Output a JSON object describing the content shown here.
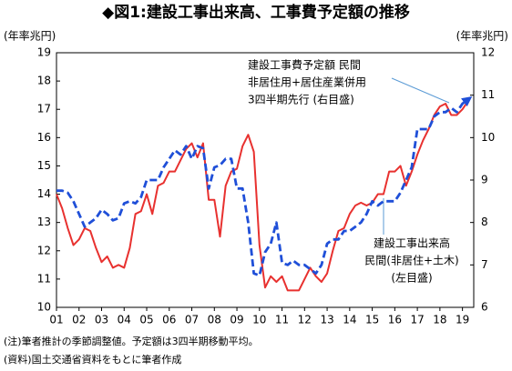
{
  "chart_data": {
    "type": "line",
    "title": "◆図1:建設工事出来高、工事費予定額の推移",
    "y_label": "(年率兆円)",
    "y2_label": "(年率兆円)",
    "x": [
      2001,
      2001.25,
      2001.5,
      2001.75,
      2002,
      2002.25,
      2002.5,
      2002.75,
      2003,
      2003.25,
      2003.5,
      2003.75,
      2004,
      2004.25,
      2004.5,
      2004.75,
      2005,
      2005.25,
      2005.5,
      2005.75,
      2006,
      2006.25,
      2006.5,
      2006.75,
      2007,
      2007.25,
      2007.5,
      2007.75,
      2008,
      2008.25,
      2008.5,
      2008.75,
      2009,
      2009.25,
      2009.5,
      2009.75,
      2010,
      2010.25,
      2010.5,
      2010.75,
      2011,
      2011.25,
      2011.5,
      2011.75,
      2012,
      2012.25,
      2012.5,
      2012.75,
      2013,
      2013.25,
      2013.5,
      2013.75,
      2014,
      2014.25,
      2014.5,
      2014.75,
      2015,
      2015.25,
      2015.5,
      2015.75,
      2016,
      2016.25,
      2016.5,
      2016.75,
      2017,
      2017.25,
      2017.5,
      2017.75,
      2018,
      2018.25,
      2018.5,
      2018.75,
      2019,
      2019.25
    ],
    "xlim": [
      2001,
      2019.5
    ],
    "xticks": [
      {
        "value": 2001,
        "label": "01"
      },
      {
        "value": 2002,
        "label": "02"
      },
      {
        "value": 2003,
        "label": "03"
      },
      {
        "value": 2004,
        "label": "04"
      },
      {
        "value": 2005,
        "label": "05"
      },
      {
        "value": 2006,
        "label": "06"
      },
      {
        "value": 2007,
        "label": "07"
      },
      {
        "value": 2008,
        "label": "08"
      },
      {
        "value": 2009,
        "label": "09"
      },
      {
        "value": 2010,
        "label": "10"
      },
      {
        "value": 2011,
        "label": "11"
      },
      {
        "value": 2012,
        "label": "12"
      },
      {
        "value": 2013,
        "label": "13"
      },
      {
        "value": 2014,
        "label": "14"
      },
      {
        "value": 2015,
        "label": "15"
      },
      {
        "value": 2016,
        "label": "16"
      },
      {
        "value": 2017,
        "label": "17"
      },
      {
        "value": 2018,
        "label": "18"
      },
      {
        "value": 2019,
        "label": "19"
      }
    ],
    "ylim": [
      10,
      19
    ],
    "yticks": [
      10,
      11,
      12,
      13,
      14,
      15,
      16,
      17,
      18,
      19
    ],
    "y2lim": [
      6,
      12
    ],
    "y2ticks": [
      6,
      7,
      8,
      9,
      10,
      11,
      12
    ],
    "grid": false,
    "series": [
      {
        "color": "#e8312f",
        "dash": false,
        "values": [
          14.0,
          13.5,
          12.8,
          12.2,
          12.4,
          12.8,
          12.7,
          12.1,
          11.6,
          11.8,
          11.4,
          11.5,
          11.4,
          12.1,
          13.3,
          13.4,
          14.0,
          13.3,
          14.3,
          14.4,
          14.8,
          14.8,
          15.2,
          15.6,
          15.8,
          15.3,
          15.8,
          13.8,
          13.8,
          12.5,
          14.3,
          14.8,
          14.9,
          15.7,
          16.1,
          15.5,
          12.2,
          10.7,
          11.1,
          10.9,
          11.1,
          10.6,
          10.6,
          10.6,
          11.0,
          11.4,
          11.1,
          10.9,
          11.2,
          12.0,
          12.7,
          12.8,
          13.3,
          13.6,
          13.7,
          13.6,
          13.7,
          14.0,
          14.0,
          14.8,
          14.8,
          15.0,
          14.3,
          14.8,
          15.4,
          15.9,
          16.3,
          16.8,
          17.1,
          17.2,
          16.8,
          16.8,
          17.0,
          17.3
        ]
      },
      {
        "color": "#1f4fd8",
        "dash": true,
        "axis": "y2",
        "values": [
          8.75,
          8.75,
          8.7,
          8.5,
          8.2,
          7.9,
          8.0,
          8.1,
          8.3,
          8.2,
          8.05,
          8.1,
          8.45,
          8.5,
          8.45,
          8.6,
          9.0,
          9.0,
          9.0,
          9.3,
          9.5,
          9.7,
          9.6,
          9.8,
          9.5,
          9.8,
          9.75,
          8.8,
          9.3,
          9.35,
          9.5,
          9.5,
          8.8,
          8.8,
          8.0,
          6.8,
          6.75,
          7.3,
          7.5,
          8.0,
          7.05,
          7.0,
          7.1,
          7.0,
          7.0,
          6.9,
          6.8,
          7.0,
          7.5,
          7.6,
          7.6,
          7.8,
          7.8,
          7.9,
          8.0,
          8.2,
          8.5,
          8.4,
          8.5,
          8.5,
          8.5,
          8.7,
          9.0,
          9.3,
          10.2,
          10.2,
          10.2,
          10.5,
          10.6,
          10.6,
          10.7,
          10.6,
          10.8,
          10.9
        ]
      }
    ],
    "annotations": [
      [
        "建設工事費予定額 民間",
        "非居住用+居住産業併用",
        "3四半期先行 (右目盛)"
      ],
      [
        "建設工事出来高",
        "民間(非居住+土木)",
        "(左目盛)"
      ]
    ],
    "notes": [
      "(注)筆者推計の季節調整値。予定額は3四半期移動平均。",
      "(資料)国土交通省資料をもとに筆者作成"
    ]
  }
}
